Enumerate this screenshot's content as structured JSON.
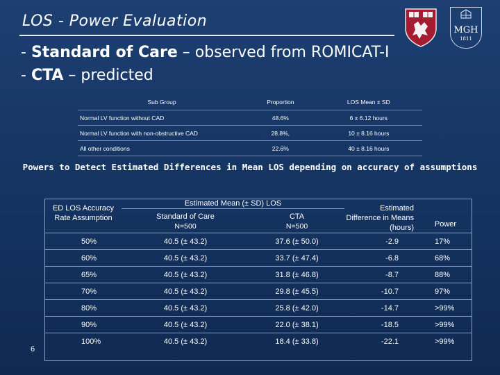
{
  "slide": {
    "title": "LOS - Power Evaluation",
    "bullets": [
      {
        "dash": "- ",
        "bold": "Standard of Care",
        "rest": " – observed from ROMICAT-I"
      },
      {
        "dash": "- ",
        "bold": "CTA",
        "rest": " – predicted"
      }
    ],
    "page_number": "6",
    "logos": {
      "left": "Harvard shield",
      "right_text": "MGH",
      "right_year": "1811"
    }
  },
  "table1": {
    "headers": [
      "Sub Group",
      "Proportion",
      "LOS  Mean ± SD"
    ],
    "rows": [
      {
        "group": "Normal LV function without CAD",
        "proportion": "48.6%",
        "los": "6 ± 6.12 hours"
      },
      {
        "group": "Normal LV function with non-obstructive CAD",
        "proportion": "28.8%,",
        "los": "10 ± 8.16 hours"
      },
      {
        "group": "All other conditions",
        "proportion": "22.6%",
        "los": "40 ± 8.16 hours"
      }
    ]
  },
  "section_heading": "Powers to Detect Estimated Differences in Mean LOS depending on accuracy of assumptions",
  "table2": {
    "headers": {
      "ed_los": "ED LOS Accuracy Rate Assumption",
      "estimated_mean": "Estimated Mean (± SD) LOS",
      "standard_of_care": "Standard of Care",
      "standard_of_care_n": "N=500",
      "cta": "CTA",
      "cta_n": "N=500",
      "difference": "Estimated Difference in Means (hours)",
      "power": "Power"
    },
    "rows": [
      {
        "rate": "50%",
        "soc": "40.5 (± 43.2)",
        "cta": "37.6 (± 50.0)",
        "diff": "-2.9",
        "power": "17%"
      },
      {
        "rate": "60%",
        "soc": "40.5 (± 43.2)",
        "cta": "33.7 (± 47.4)",
        "diff": "-6.8",
        "power": "68%"
      },
      {
        "rate": "65%",
        "soc": "40.5 (± 43.2)",
        "cta": "31.8 (± 46.8)",
        "diff": "-8.7",
        "power": "88%"
      },
      {
        "rate": "70%",
        "soc": "40.5 (± 43.2)",
        "cta": "29.8 (± 45.5)",
        "diff": "-10.7",
        "power": "97%"
      },
      {
        "rate": "80%",
        "soc": "40.5 (± 43.2)",
        "cta": "25.8 (± 42.0)",
        "diff": "-14.7",
        "power": ">99%"
      },
      {
        "rate": "90%",
        "soc": "40.5 (± 43.2)",
        "cta": "22.0 (± 38.1)",
        "diff": "-18.5",
        "power": ">99%"
      },
      {
        "rate": "100%",
        "soc": "40.5 (± 43.2)",
        "cta": "18.4 (± 33.8)",
        "diff": "-22.1",
        "power": ">99%"
      }
    ]
  }
}
